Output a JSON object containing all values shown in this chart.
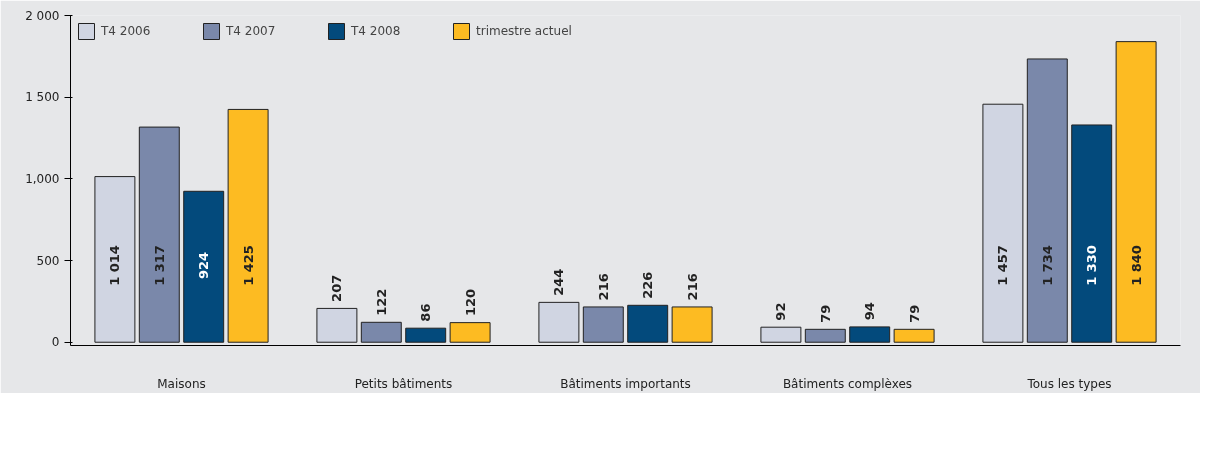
{
  "chart_data": {
    "type": "bar",
    "categories": [
      "Maisons",
      "Petits bâtiments",
      "Bâtiments importants",
      "Bâtiments complèxes",
      "Tous les types"
    ],
    "series": [
      {
        "name": "T4 2006",
        "color": "#d0d5e2",
        "values": [
          1014,
          207,
          244,
          92,
          1457
        ],
        "value_labels": [
          "1 014",
          "207",
          "244",
          "92",
          "1 457"
        ]
      },
      {
        "name": "T4 2007",
        "color": "#7a88aa",
        "values": [
          1317,
          122,
          216,
          79,
          1734
        ],
        "value_labels": [
          "1 317",
          "122",
          "216",
          "79",
          "1 734"
        ]
      },
      {
        "name": "T4 2008",
        "color": "#034a7c",
        "values": [
          924,
          86,
          226,
          94,
          1330
        ],
        "value_labels": [
          "924",
          "86",
          "226",
          "94",
          "1 330"
        ]
      },
      {
        "name": "trimestre actuel",
        "color": "#fdbb22",
        "values": [
          1425,
          120,
          216,
          79,
          1840
        ],
        "value_labels": [
          "1 425",
          "120",
          "216",
          "79",
          "1 840"
        ]
      }
    ],
    "ylim": [
      0,
      2000
    ],
    "yticks": [
      0,
      500,
      {
        "value": 1000,
        "label": "1,000"
      },
      {
        "value": 1500,
        "label": "1 500"
      },
      {
        "value": 2000,
        "label": "2 000"
      }
    ],
    "legend": "top"
  }
}
